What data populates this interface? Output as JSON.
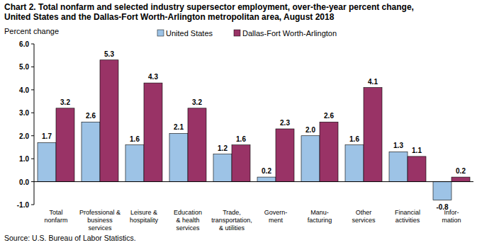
{
  "chart_data": {
    "type": "bar",
    "title": "Chart 2. Total nonfarm and selected industry supersector employment, over-the-year percent change,\nUnited States and the Dallas-Fort Worth-Arlington metropolitan area, August 2018",
    "y_label": "Percent change",
    "source": "Source: U.S. Bureau of Labor Statistics.",
    "categories": [
      "Total\nnonfarm",
      "Professional &\nbusiness\nservices",
      "Leisure &\nhospitality",
      "Education\n& health\nservices",
      "Trade,\ntransportation,\n& utilities",
      "Govern-\nment",
      "Manu-\nfacturing",
      "Other\nservices",
      "Financial\nactivities",
      "Infor-\nmation"
    ],
    "series": [
      {
        "name": "United States",
        "color": "#9dc3e6",
        "values": [
          1.7,
          2.6,
          1.6,
          2.1,
          1.2,
          0.2,
          2.0,
          1.6,
          1.3,
          -0.8
        ],
        "value_labels": [
          "1.7",
          "2.6",
          "1.6",
          "2.1",
          "1.2",
          "0.2",
          "2.0",
          "1.6",
          "1.3",
          "-0.8"
        ]
      },
      {
        "name": "Dallas-Fort Worth-Arlington",
        "color": "#993366",
        "values": [
          3.2,
          5.3,
          4.3,
          3.2,
          1.6,
          2.3,
          2.6,
          4.1,
          1.1,
          0.2
        ]
      }
    ],
    "ylim": [
      -1,
      6
    ],
    "yticks": [
      {
        "value": -1,
        "label": "-1.0"
      },
      {
        "value": 0,
        "label": "0.0"
      },
      {
        "value": 1,
        "label": "1.0"
      },
      {
        "value": 2,
        "label": "2.0"
      },
      {
        "value": 3,
        "label": "3.0"
      },
      {
        "value": 4,
        "label": "4.0"
      },
      {
        "value": 5,
        "label": "5.0"
      },
      {
        "value": 6,
        "label": "6.0"
      }
    ],
    "grid": false,
    "legend": "top",
    "data_labels": true
  }
}
